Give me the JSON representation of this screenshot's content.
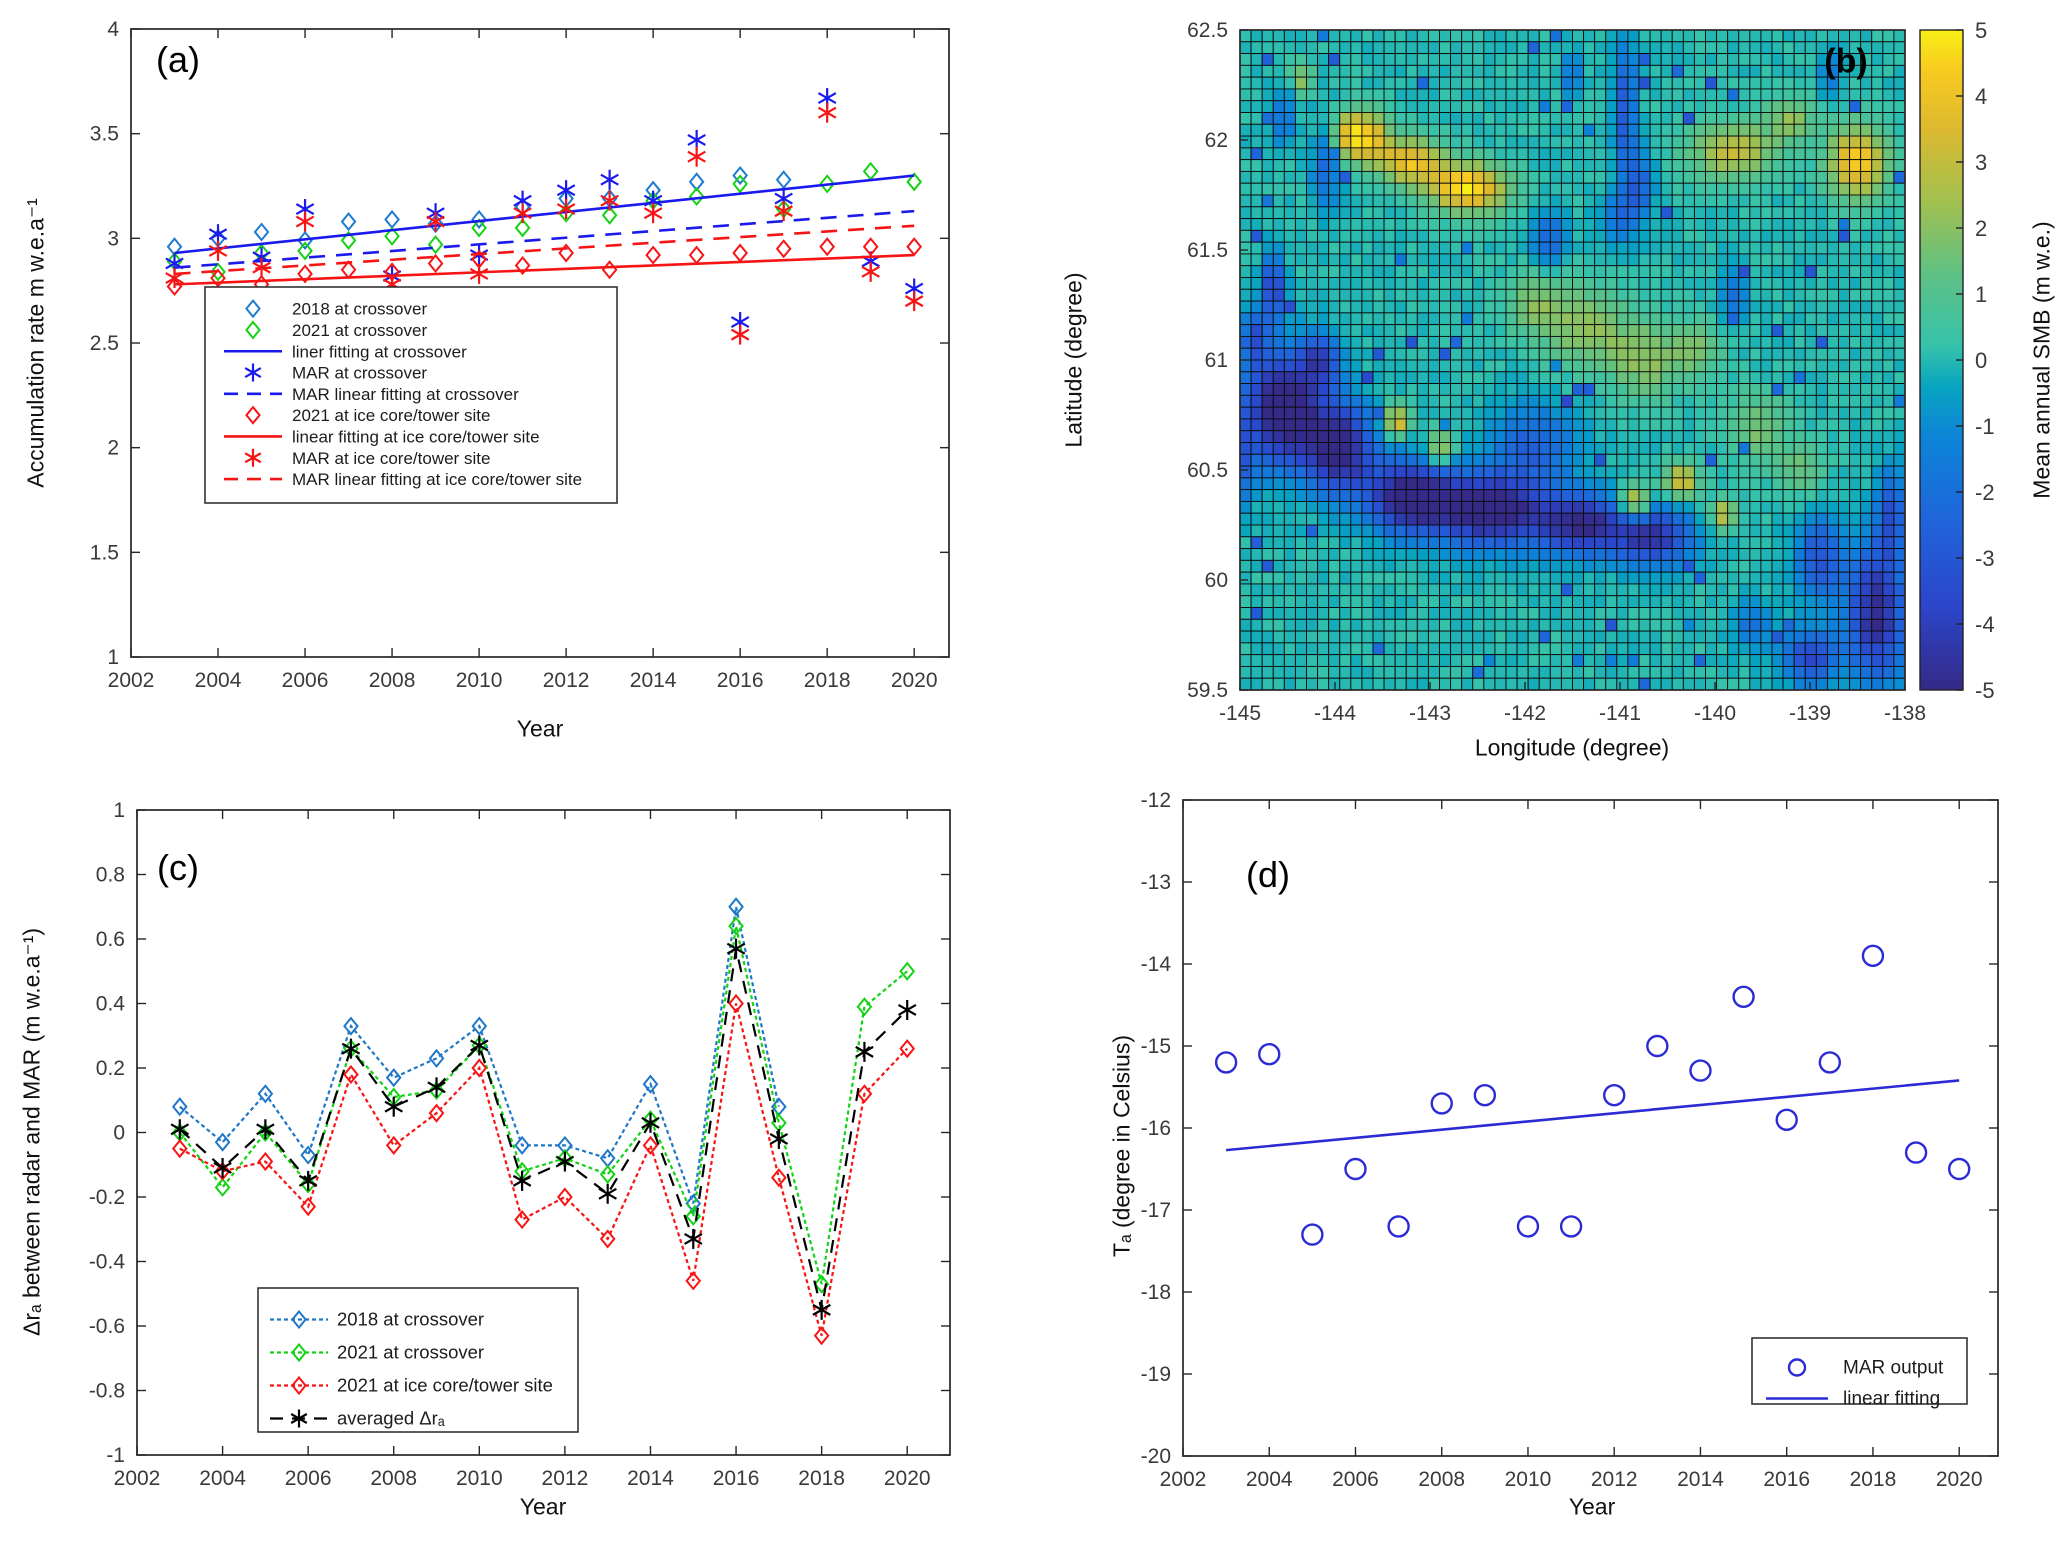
{
  "figure": {
    "background": "#ffffff"
  },
  "colors": {
    "blue_marker": "#1f7ad1",
    "pure_blue": "#1a1aee",
    "green": "#15d215",
    "red": "#f81414",
    "black": "#000000",
    "axis": "#262626",
    "tick_text": "#3a3a3a"
  },
  "chart_data": [
    {
      "id": "a",
      "type": "scatter",
      "panel_label": "(a)",
      "xlabel": "Year",
      "ylabel": "Accumulation rate m w.e.a⁻¹",
      "xlim": [
        2002,
        2020.8
      ],
      "ylim": [
        1,
        4
      ],
      "xticks": [
        2002,
        2004,
        2006,
        2008,
        2010,
        2012,
        2014,
        2016,
        2018,
        2020
      ],
      "yticks": [
        1,
        1.5,
        2,
        2.5,
        3,
        3.5,
        4
      ],
      "years": [
        2003,
        2004,
        2005,
        2006,
        2007,
        2008,
        2009,
        2010,
        2011,
        2012,
        2013,
        2014,
        2015,
        2016,
        2017,
        2018,
        2019,
        2020
      ],
      "series": [
        {
          "name": "2018 at crossover",
          "kind": "scatter",
          "marker": "diamond",
          "color": "#1f7ad1",
          "values": [
            2.96,
            3.0,
            3.03,
            2.99,
            3.08,
            3.09,
            3.07,
            3.09,
            3.15,
            3.19,
            3.19,
            3.23,
            3.27,
            3.3,
            3.28,
            null,
            null,
            null
          ]
        },
        {
          "name": "2021 at crossover",
          "kind": "scatter",
          "marker": "diamond",
          "color": "#15d215",
          "values": [
            2.89,
            2.84,
            2.93,
            2.94,
            2.99,
            3.01,
            2.97,
            3.05,
            3.05,
            3.12,
            3.11,
            3.18,
            3.2,
            3.26,
            3.14,
            3.26,
            3.32,
            3.27
          ]
        },
        {
          "name": "liner fitting at crossover",
          "kind": "fit",
          "style": "solid",
          "color": "#1a1aee",
          "x": [
            2003,
            2020
          ],
          "y": [
            2.93,
            3.3
          ]
        },
        {
          "name": "MAR at crossover",
          "kind": "scatter",
          "marker": "asterisk",
          "color": "#1a1aee",
          "values": [
            2.88,
            3.02,
            2.91,
            3.14,
            2.72,
            2.82,
            3.12,
            2.92,
            3.18,
            3.23,
            3.28,
            3.18,
            3.47,
            2.6,
            3.19,
            3.67,
            2.89,
            2.76
          ]
        },
        {
          "name": "MAR linear fitting at crossover",
          "kind": "fit",
          "style": "dashed",
          "color": "#1a1aee",
          "x": [
            2003,
            2020
          ],
          "y": [
            2.86,
            3.13
          ]
        },
        {
          "name": "2021 at ice core/tower site",
          "kind": "scatter",
          "marker": "diamond",
          "color": "#f81414",
          "values": [
            2.77,
            2.81,
            2.78,
            2.83,
            2.85,
            2.84,
            2.88,
            2.9,
            2.87,
            2.93,
            2.85,
            2.92,
            2.92,
            2.93,
            2.95,
            2.96,
            2.96,
            2.96
          ]
        },
        {
          "name": "linear fitting at ice core/tower site",
          "kind": "fit",
          "style": "solid",
          "color": "#f81414",
          "x": [
            2003,
            2020
          ],
          "y": [
            2.78,
            2.92
          ]
        },
        {
          "name": "MAR at ice core/tower site",
          "kind": "scatter",
          "marker": "asterisk",
          "color": "#f81414",
          "values": [
            2.81,
            2.94,
            2.86,
            3.08,
            2.66,
            2.78,
            3.08,
            2.83,
            3.12,
            3.14,
            3.18,
            3.12,
            3.39,
            2.54,
            3.13,
            3.6,
            2.84,
            2.7
          ]
        },
        {
          "name": "MAR linear fitting at ice core/tower site",
          "kind": "fit",
          "style": "dashed",
          "color": "#f81414",
          "x": [
            2003,
            2020
          ],
          "y": [
            2.83,
            3.06
          ]
        }
      ]
    },
    {
      "id": "b",
      "type": "heatmap",
      "panel_label": "(b)",
      "xlabel": "Longitude (degree)",
      "ylabel": "Latitude (degree)",
      "xlim": [
        -145,
        -138
      ],
      "ylim": [
        59.5,
        62.5
      ],
      "xticks": [
        -145,
        -144,
        -143,
        -142,
        -141,
        -140,
        -139,
        -138
      ],
      "yticks": [
        59.5,
        60,
        60.5,
        61,
        61.5,
        62,
        62.5
      ],
      "grid": {
        "cols": 60,
        "rows": 56,
        "base_value": 0,
        "noise_seed": 7
      },
      "colorbar": {
        "label": "Mean annual SMB (m w.e.)",
        "min": -5,
        "max": 5,
        "ticks": [
          5,
          4,
          3,
          2,
          1,
          0,
          -1,
          -2,
          -3,
          -4,
          -5
        ],
        "stops": [
          [
            0,
            "#352a87"
          ],
          [
            0.13,
            "#2b46cb"
          ],
          [
            0.25,
            "#2063da"
          ],
          [
            0.38,
            "#0d84d8"
          ],
          [
            0.46,
            "#08a4c0"
          ],
          [
            0.52,
            "#35c2ab"
          ],
          [
            0.63,
            "#5ec184"
          ],
          [
            0.74,
            "#a2c04f"
          ],
          [
            0.85,
            "#dcb92f"
          ],
          [
            0.94,
            "#f9cb20"
          ],
          [
            1,
            "#f8ef15"
          ]
        ]
      },
      "features": [
        [
          -143.75,
          62.02,
          5,
          0.3,
          0.11
        ],
        [
          -143.2,
          61.9,
          4,
          0.35,
          0.1
        ],
        [
          -142.6,
          61.78,
          5,
          0.4,
          0.11
        ],
        [
          -144.35,
          62.28,
          2,
          0.12,
          0.07
        ],
        [
          -144.1,
          61.9,
          -2.5,
          0.15,
          0.2
        ],
        [
          -144.55,
          62.1,
          -2,
          0.12,
          0.12
        ],
        [
          -139.8,
          61.95,
          3,
          0.45,
          0.13
        ],
        [
          -139.2,
          62.1,
          2,
          0.25,
          0.1
        ],
        [
          -138.5,
          61.9,
          4.5,
          0.3,
          0.16
        ],
        [
          -138.8,
          62.3,
          -2,
          0.1,
          0.1
        ],
        [
          -140.95,
          62.15,
          -3,
          0.12,
          0.3
        ],
        [
          -140.8,
          61.8,
          -2.5,
          0.15,
          0.15
        ],
        [
          -141.0,
          61.65,
          -2,
          0.2,
          0.12
        ],
        [
          -141.75,
          61.55,
          -2.5,
          0.18,
          0.12
        ],
        [
          -141.5,
          62.3,
          -2,
          0.1,
          0.1
        ],
        [
          -141.9,
          61.25,
          1.8,
          0.3,
          0.15
        ],
        [
          -141.35,
          61.15,
          2.2,
          0.4,
          0.18
        ],
        [
          -140.75,
          61.0,
          2.0,
          0.35,
          0.18
        ],
        [
          -140.2,
          61.05,
          1.6,
          0.3,
          0.14
        ],
        [
          -139.8,
          61.3,
          -2,
          0.15,
          0.12
        ],
        [
          -144.65,
          61.32,
          -4,
          0.12,
          0.15
        ],
        [
          -144.85,
          61.1,
          -3,
          0.12,
          0.12
        ],
        [
          -144.55,
          60.78,
          -6,
          0.4,
          0.25
        ],
        [
          -143.95,
          60.6,
          -5.5,
          0.35,
          0.2
        ],
        [
          -143.2,
          60.38,
          -6,
          0.45,
          0.16
        ],
        [
          -142.35,
          60.32,
          -6,
          0.55,
          0.16
        ],
        [
          -141.4,
          60.25,
          -5,
          0.45,
          0.14
        ],
        [
          -140.65,
          60.2,
          -4.5,
          0.4,
          0.13
        ],
        [
          -141.9,
          60.62,
          -2.5,
          0.45,
          0.18
        ],
        [
          -144.15,
          61.0,
          -3.5,
          0.2,
          0.12
        ],
        [
          -143.35,
          60.72,
          4,
          0.12,
          0.07
        ],
        [
          -142.9,
          60.6,
          3,
          0.15,
          0.08
        ],
        [
          -140.85,
          60.35,
          4,
          0.17,
          0.08
        ],
        [
          -140.35,
          60.45,
          3.5,
          0.18,
          0.08
        ],
        [
          -139.9,
          60.3,
          3,
          0.14,
          0.07
        ],
        [
          -139.55,
          60.7,
          1.8,
          0.3,
          0.15
        ],
        [
          -139.1,
          60.5,
          1.5,
          0.25,
          0.13
        ],
        [
          -138.9,
          60.1,
          -3,
          0.25,
          0.2
        ],
        [
          -138.3,
          59.85,
          -5,
          0.3,
          0.3
        ],
        [
          -138.15,
          60.3,
          -3,
          0.15,
          0.2
        ],
        [
          -139.0,
          59.65,
          -3.5,
          0.3,
          0.12
        ],
        [
          -139.6,
          59.8,
          -2,
          0.2,
          0.1
        ],
        [
          -145.0,
          60.55,
          -2.5,
          0.15,
          0.2
        ]
      ]
    },
    {
      "id": "c",
      "type": "line",
      "panel_label": "(c)",
      "xlabel": "Year",
      "ylabel": "Δrₐ between radar and MAR (m w.e.a⁻¹)",
      "xlim": [
        2002,
        2021
      ],
      "ylim": [
        -1,
        1
      ],
      "xticks": [
        2002,
        2004,
        2006,
        2008,
        2010,
        2012,
        2014,
        2016,
        2018,
        2020
      ],
      "yticks": [
        -1,
        -0.8,
        -0.6,
        -0.4,
        -0.2,
        0,
        0.2,
        0.4,
        0.6,
        0.8,
        1
      ],
      "years": [
        2003,
        2004,
        2005,
        2006,
        2007,
        2008,
        2009,
        2010,
        2011,
        2012,
        2013,
        2014,
        2015,
        2016,
        2017,
        2018,
        2019,
        2020
      ],
      "series": [
        {
          "name": "2018 at crossover",
          "marker": "diamond",
          "color": "#1f77c8",
          "dash": "4 3",
          "values": [
            0.08,
            -0.03,
            0.12,
            -0.07,
            0.33,
            0.17,
            0.23,
            0.33,
            -0.04,
            -0.04,
            -0.08,
            0.15,
            -0.22,
            0.7,
            0.08,
            null,
            null,
            null
          ]
        },
        {
          "name": "2021 at crossover",
          "marker": "diamond",
          "color": "#15d215",
          "dash": "4 3",
          "values": [
            0.0,
            -0.17,
            0.0,
            -0.16,
            0.26,
            0.11,
            0.13,
            0.27,
            -0.12,
            -0.08,
            -0.13,
            0.04,
            -0.26,
            0.64,
            0.03,
            -0.47,
            0.39,
            0.5
          ]
        },
        {
          "name": "2021 at ice core/tower site",
          "marker": "diamond",
          "color": "#f81414",
          "dash": "4 3",
          "values": [
            -0.05,
            -0.12,
            -0.09,
            -0.23,
            0.18,
            -0.04,
            0.06,
            0.2,
            -0.27,
            -0.2,
            -0.33,
            -0.04,
            -0.46,
            0.4,
            -0.14,
            -0.63,
            0.12,
            0.26
          ]
        },
        {
          "name": "averaged Δrₐ",
          "marker": "asterisk",
          "color": "#000000",
          "dash": "13 9",
          "values": [
            0.01,
            -0.11,
            0.01,
            -0.15,
            0.26,
            0.08,
            0.14,
            0.27,
            -0.15,
            -0.09,
            -0.19,
            0.03,
            -0.33,
            0.57,
            -0.02,
            -0.55,
            0.25,
            0.38
          ]
        }
      ]
    },
    {
      "id": "d",
      "type": "scatter",
      "panel_label": "(d)",
      "xlabel": "Year",
      "ylabel": "Tₐ (degree in Celsius)",
      "xlim": [
        2002,
        2020.9
      ],
      "ylim": [
        -20,
        -12
      ],
      "xticks": [
        2002,
        2004,
        2006,
        2008,
        2010,
        2012,
        2014,
        2016,
        2018,
        2020
      ],
      "yticks": [
        -20,
        -19,
        -18,
        -17,
        -16,
        -15,
        -14,
        -13,
        -12
      ],
      "years": [
        2003,
        2004,
        2005,
        2006,
        2007,
        2008,
        2009,
        2010,
        2011,
        2012,
        2013,
        2014,
        2015,
        2016,
        2017,
        2018,
        2019,
        2020
      ],
      "series": [
        {
          "name": "MAR output",
          "kind": "scatter",
          "marker": "circle",
          "color": "#2b2bd5",
          "values": [
            -15.2,
            -15.1,
            -17.3,
            -16.5,
            -17.2,
            -15.7,
            -15.6,
            -17.2,
            -17.2,
            -15.6,
            -15.0,
            -15.3,
            -14.4,
            -15.9,
            -15.2,
            -13.9,
            -16.3,
            -16.5
          ]
        },
        {
          "name": "linear fitting",
          "kind": "fit",
          "style": "solid",
          "color": "#2b2bd5",
          "x": [
            2003,
            2020
          ],
          "y": [
            -16.27,
            -15.42
          ]
        }
      ]
    }
  ]
}
